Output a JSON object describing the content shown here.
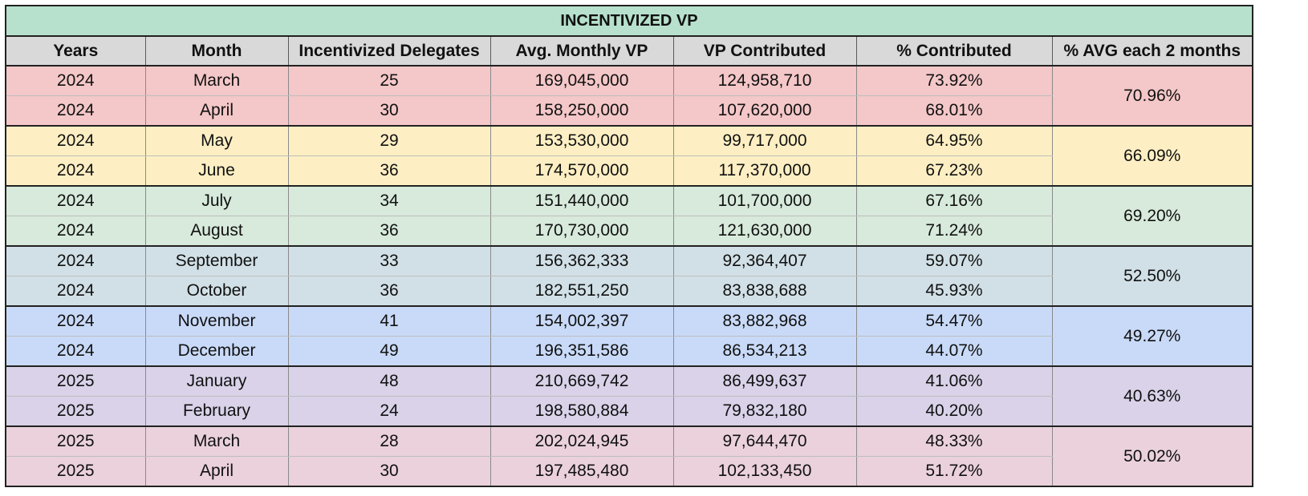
{
  "title": "INCENTIVIZED VP",
  "colors": {
    "title_bg": "#b7e1cd",
    "header_bg": "#d9d9d9",
    "group_colors": [
      "#f4c7c8",
      "#fdefc3",
      "#d7eadb",
      "#d1e0e6",
      "#c9daf8",
      "#d9d2e9",
      "#ead1dc"
    ]
  },
  "columns": [
    "Years",
    "Month",
    "Incentivized Delegates",
    "Avg. Monthly VP",
    "VP Contributed",
    "% Contributed",
    "% AVG each 2 months"
  ],
  "groups": [
    {
      "avg": "70.96%",
      "rows": [
        {
          "year": "2024",
          "month": "March",
          "delegates": "25",
          "avg_vp": "169,045,000",
          "vp_contributed": "124,958,710",
          "pct": "73.92%"
        },
        {
          "year": "2024",
          "month": "April",
          "delegates": "30",
          "avg_vp": "158,250,000",
          "vp_contributed": "107,620,000",
          "pct": "68.01%"
        }
      ]
    },
    {
      "avg": "66.09%",
      "rows": [
        {
          "year": "2024",
          "month": "May",
          "delegates": "29",
          "avg_vp": "153,530,000",
          "vp_contributed": "99,717,000",
          "pct": "64.95%"
        },
        {
          "year": "2024",
          "month": "June",
          "delegates": "36",
          "avg_vp": "174,570,000",
          "vp_contributed": "117,370,000",
          "pct": "67.23%"
        }
      ]
    },
    {
      "avg": "69.20%",
      "rows": [
        {
          "year": "2024",
          "month": "July",
          "delegates": "34",
          "avg_vp": "151,440,000",
          "vp_contributed": "101,700,000",
          "pct": "67.16%"
        },
        {
          "year": "2024",
          "month": "August",
          "delegates": "36",
          "avg_vp": "170,730,000",
          "vp_contributed": "121,630,000",
          "pct": "71.24%"
        }
      ]
    },
    {
      "avg": "52.50%",
      "rows": [
        {
          "year": "2024",
          "month": "September",
          "delegates": "33",
          "avg_vp": "156,362,333",
          "vp_contributed": "92,364,407",
          "pct": "59.07%"
        },
        {
          "year": "2024",
          "month": "October",
          "delegates": "36",
          "avg_vp": "182,551,250",
          "vp_contributed": "83,838,688",
          "pct": "45.93%"
        }
      ]
    },
    {
      "avg": "49.27%",
      "rows": [
        {
          "year": "2024",
          "month": "November",
          "delegates": "41",
          "avg_vp": "154,002,397",
          "vp_contributed": "83,882,968",
          "pct": "54.47%"
        },
        {
          "year": "2024",
          "month": "December",
          "delegates": "49",
          "avg_vp": "196,351,586",
          "vp_contributed": "86,534,213",
          "pct": "44.07%"
        }
      ]
    },
    {
      "avg": "40.63%",
      "rows": [
        {
          "year": "2025",
          "month": "January",
          "delegates": "48",
          "avg_vp": "210,669,742",
          "vp_contributed": "86,499,637",
          "pct": "41.06%"
        },
        {
          "year": "2025",
          "month": "February",
          "delegates": "24",
          "avg_vp": "198,580,884",
          "vp_contributed": "79,832,180",
          "pct": "40.20%"
        }
      ]
    },
    {
      "avg": "50.02%",
      "rows": [
        {
          "year": "2025",
          "month": "March",
          "delegates": "28",
          "avg_vp": "202,024,945",
          "vp_contributed": "97,644,470",
          "pct": "48.33%"
        },
        {
          "year": "2025",
          "month": "April",
          "delegates": "30",
          "avg_vp": "197,485,480",
          "vp_contributed": "102,133,450",
          "pct": "51.72%"
        }
      ]
    }
  ]
}
